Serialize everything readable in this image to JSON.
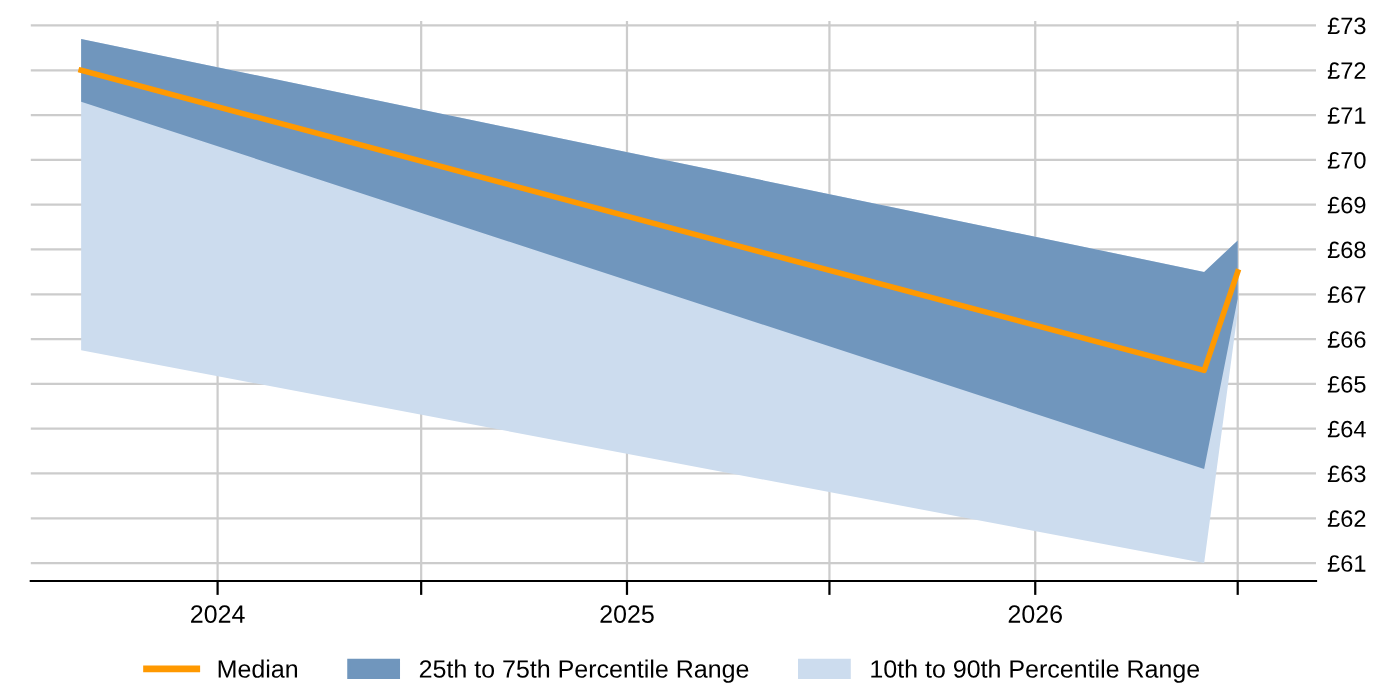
{
  "chart_data": {
    "type": "line",
    "x": [
      "2023-09-01",
      "2026-06-01",
      "2026-07-01"
    ],
    "series": [
      {
        "name": "Median",
        "color": "#ff9900",
        "values": [
          72.0,
          65.3,
          67.5
        ]
      },
      {
        "name": "25th to 75th Percentile Range",
        "type": "area",
        "color": "#7096bd",
        "values": [
          null,
          null,
          null
        ],
        "lower": [
          71.3,
          63.1,
          66.9
        ],
        "upper": [
          72.7,
          67.5,
          68.2
        ]
      },
      {
        "name": "10th to 90th Percentile Range",
        "type": "area",
        "color": "#ccdcee",
        "values": [
          null,
          null,
          null
        ],
        "lower": [
          65.75,
          61.0,
          66.6
        ],
        "upper": [
          72.7,
          67.5,
          68.2
        ]
      }
    ],
    "xlim": [
      "2023-07-18",
      "2026-09-09"
    ],
    "xticks": [
      {
        "value": "2024-01-01",
        "label": "2024"
      },
      {
        "value": "2024-07-01",
        "label": null
      },
      {
        "value": "2025-01-01",
        "label": "2025"
      },
      {
        "value": "2025-07-01",
        "label": null
      },
      {
        "value": "2026-01-01",
        "label": "2026"
      },
      {
        "value": "2026-07-01",
        "label": null
      }
    ],
    "ylim": [
      60.6,
      73.1
    ],
    "yticks": [
      {
        "value": 61,
        "label": "£61"
      },
      {
        "value": 62,
        "label": "£62"
      },
      {
        "value": 63,
        "label": "£63"
      },
      {
        "value": 64,
        "label": "£64"
      },
      {
        "value": 65,
        "label": "£65"
      },
      {
        "value": 66,
        "label": "£66"
      },
      {
        "value": 67,
        "label": "£67"
      },
      {
        "value": 68,
        "label": "£68"
      },
      {
        "value": 69,
        "label": "£69"
      },
      {
        "value": 70,
        "label": "£70"
      },
      {
        "value": 71,
        "label": "£71"
      },
      {
        "value": 72,
        "label": "£72"
      },
      {
        "value": 73,
        "label": "£73"
      }
    ],
    "grid": true,
    "legend": "bottom",
    "marker": "none"
  }
}
